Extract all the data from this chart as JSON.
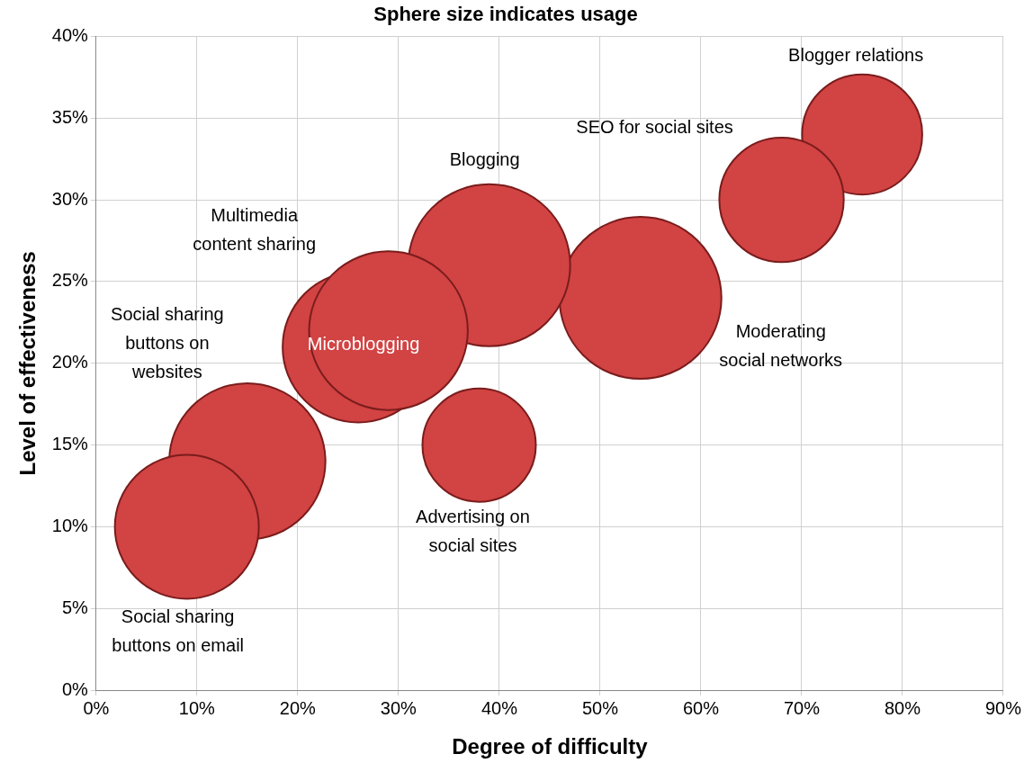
{
  "chart_data": {
    "type": "bubble",
    "title": "Sphere size indicates usage",
    "xlabel": "Degree of difficulty",
    "ylabel": "Level of effectiveness",
    "series": [
      {
        "name": "Social sharing\nbuttons on email",
        "x": [
          9
        ],
        "values": [
          10
        ],
        "sizes": [
          0.79
        ],
        "color": "#d24343"
      },
      {
        "name": "Social sharing\nbuttons on\nwebsites",
        "x": [
          15
        ],
        "values": [
          14
        ],
        "sizes": [
          0.93
        ],
        "color": "#d24343"
      },
      {
        "name": "Multimedia\ncontent sharing",
        "x": [
          29
        ],
        "values": [
          22
        ],
        "sizes": [
          0.96
        ],
        "color": "#d24343"
      },
      {
        "name": "Microblogging",
        "x": [
          26
        ],
        "values": [
          21
        ],
        "sizes": [
          0.87
        ],
        "color": "#d24343"
      },
      {
        "name": "Blogging",
        "x": [
          39
        ],
        "values": [
          26
        ],
        "sizes": [
          1
        ],
        "color": "#d24343"
      },
      {
        "name": "Advertising on\nsocial sites",
        "x": [
          38
        ],
        "values": [
          15
        ],
        "sizes": [
          0.49
        ],
        "color": "#d24343"
      },
      {
        "name": "Moderating\nsocial networks",
        "x": [
          54
        ],
        "values": [
          24
        ],
        "sizes": [
          1
        ],
        "color": "#d24343"
      },
      {
        "name": "SEO for social sites",
        "x": [
          68
        ],
        "values": [
          30
        ],
        "sizes": [
          0.59
        ],
        "color": "#d24343"
      },
      {
        "name": "Blogger relations",
        "x": [
          76
        ],
        "values": [
          34
        ],
        "sizes": [
          0.55
        ],
        "color": "#d24343"
      }
    ],
    "xlim": [
      0,
      90
    ],
    "xticks": [
      {
        "value": 0,
        "label": "0%"
      },
      {
        "value": 10,
        "label": "10%"
      },
      {
        "value": 20,
        "label": "20%"
      },
      {
        "value": 30,
        "label": "30%"
      },
      {
        "value": 40,
        "label": "40%"
      },
      {
        "value": 50,
        "label": "50%"
      },
      {
        "value": 60,
        "label": "60%"
      },
      {
        "value": 70,
        "label": "70%"
      },
      {
        "value": 80,
        "label": "80%"
      },
      {
        "value": 90,
        "label": "90%"
      }
    ],
    "ylim": [
      0,
      40
    ],
    "yticks": [
      {
        "value": 0,
        "label": "0%"
      },
      {
        "value": 5,
        "label": "5%"
      },
      {
        "value": 10,
        "label": "10%"
      },
      {
        "value": 15,
        "label": "15%"
      },
      {
        "value": 20,
        "label": "20%"
      },
      {
        "value": 25,
        "label": "25%"
      },
      {
        "value": 30,
        "label": "30%"
      },
      {
        "value": 35,
        "label": "35%"
      },
      {
        "value": 40,
        "label": "40%"
      }
    ],
    "grid": true
  }
}
